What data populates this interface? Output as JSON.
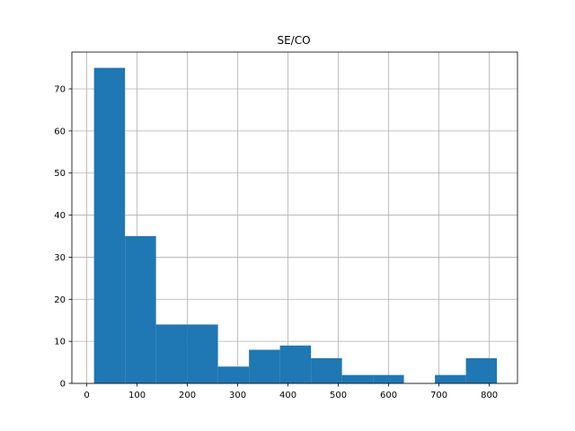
{
  "chart_data": {
    "type": "bar",
    "title": "SE/CO",
    "xlabel": "",
    "ylabel": "",
    "bar_color": "#1f77b4",
    "grid": true,
    "xlim": [
      -29.5,
      856
    ],
    "ylim": [
      0,
      78.75
    ],
    "xticks": [
      0,
      100,
      200,
      300,
      400,
      500,
      600,
      700,
      800
    ],
    "yticks": [
      0,
      10,
      20,
      30,
      40,
      50,
      60,
      70
    ],
    "bins": [
      {
        "x0": 14.5,
        "x1": 76.1,
        "count": 75
      },
      {
        "x0": 76.1,
        "x1": 137.7,
        "count": 35
      },
      {
        "x0": 137.7,
        "x1": 199.2,
        "count": 14
      },
      {
        "x0": 199.2,
        "x1": 260.8,
        "count": 14
      },
      {
        "x0": 260.8,
        "x1": 322.4,
        "count": 4
      },
      {
        "x0": 322.4,
        "x1": 384.0,
        "count": 8
      },
      {
        "x0": 384.0,
        "x1": 445.6,
        "count": 9
      },
      {
        "x0": 445.6,
        "x1": 507.2,
        "count": 6
      },
      {
        "x0": 507.2,
        "x1": 568.8,
        "count": 2
      },
      {
        "x0": 568.8,
        "x1": 630.3,
        "count": 2
      },
      {
        "x0": 630.3,
        "x1": 691.9,
        "count": 0
      },
      {
        "x0": 691.9,
        "x1": 753.5,
        "count": 2
      },
      {
        "x0": 753.5,
        "x1": 815.1,
        "count": 6
      }
    ]
  }
}
